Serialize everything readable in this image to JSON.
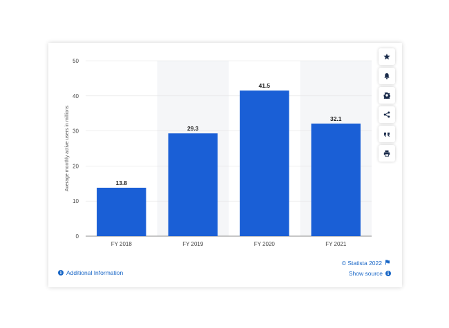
{
  "chart_data": {
    "type": "bar",
    "categories": [
      "FY 2018",
      "FY 2019",
      "FY 2020",
      "FY 2021"
    ],
    "values": [
      13.8,
      29.3,
      41.5,
      32.1
    ],
    "value_labels": [
      "13.8",
      "29.3",
      "41.5",
      "32.1"
    ],
    "ylabel": "Average monthly active users in millions",
    "ylim": [
      0,
      50
    ],
    "yticks": [
      "0",
      "10",
      "20",
      "30",
      "40",
      "50"
    ],
    "bar_color": "#1a5fd6",
    "grid": true
  },
  "toolbar": {
    "buttons": [
      "star-icon",
      "bell-icon",
      "gear-icon",
      "share-icon",
      "quote-icon",
      "print-icon"
    ]
  },
  "footer": {
    "copyright": "© Statista 2022",
    "additional_info": "Additional Information",
    "show_source": "Show source"
  }
}
